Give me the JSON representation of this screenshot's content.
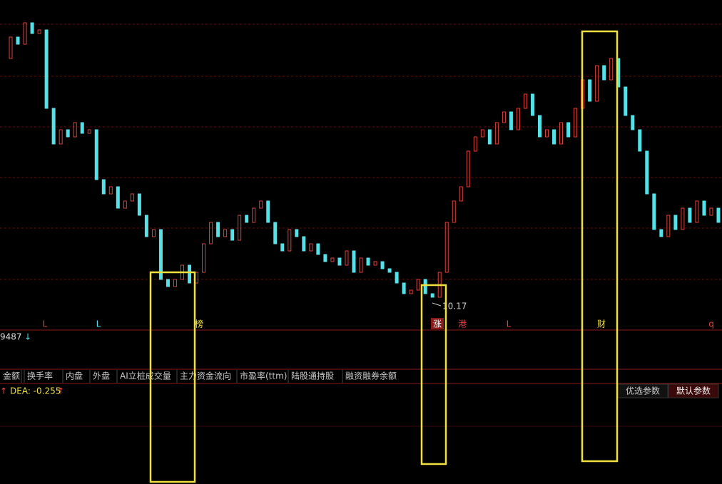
{
  "chart_data": {
    "type": "candlestick",
    "ylim": [
      10.0,
      14.3
    ],
    "close": [
      13.6,
      13.9,
      13.8,
      14.1,
      13.95,
      14.0,
      12.9,
      12.4,
      12.6,
      12.5,
      12.7,
      12.55,
      12.6,
      11.9,
      11.7,
      11.8,
      11.5,
      11.6,
      11.7,
      11.4,
      11.1,
      11.2,
      10.5,
      10.4,
      10.5,
      10.7,
      10.45,
      10.6,
      11.0,
      11.3,
      11.1,
      11.2,
      11.05,
      11.4,
      11.3,
      11.5,
      11.6,
      11.3,
      11.0,
      10.9,
      11.2,
      11.1,
      10.9,
      11.0,
      10.85,
      10.75,
      10.8,
      10.7,
      10.9,
      10.6,
      10.8,
      10.7,
      10.75,
      10.65,
      10.6,
      10.45,
      10.3,
      10.35,
      10.5,
      10.3,
      10.25,
      10.6,
      11.3,
      11.6,
      11.8,
      12.3,
      12.5,
      12.6,
      12.4,
      12.7,
      12.85,
      12.6,
      12.9,
      13.1,
      12.8,
      12.5,
      12.6,
      12.4,
      12.7,
      12.5,
      12.9,
      13.3,
      13.0,
      13.5,
      13.3,
      13.6,
      13.2,
      12.8,
      12.6,
      12.3,
      11.7,
      11.2,
      11.1,
      11.4,
      11.2,
      11.5,
      11.3,
      11.6,
      11.4,
      11.5,
      11.3
    ],
    "up_color": "#e0403a",
    "down_color": "#54e1e8",
    "low_label": {
      "value": 10.17,
      "label": "10.17"
    }
  },
  "markers": [
    "L",
    "L",
    "榜",
    "涨",
    "港",
    "L",
    "财",
    "q"
  ],
  "volume_label": "9487",
  "tabs": [
    "金额",
    "换手率",
    "内盘",
    "外盘",
    "AI立桩成交量",
    "主力资金流向",
    "市盈率(ttm)",
    "陆股通持股",
    "融资融券余额"
  ],
  "macd_label": "DEA: -0.255",
  "buttons": [
    "优选参数",
    "默认参数"
  ]
}
